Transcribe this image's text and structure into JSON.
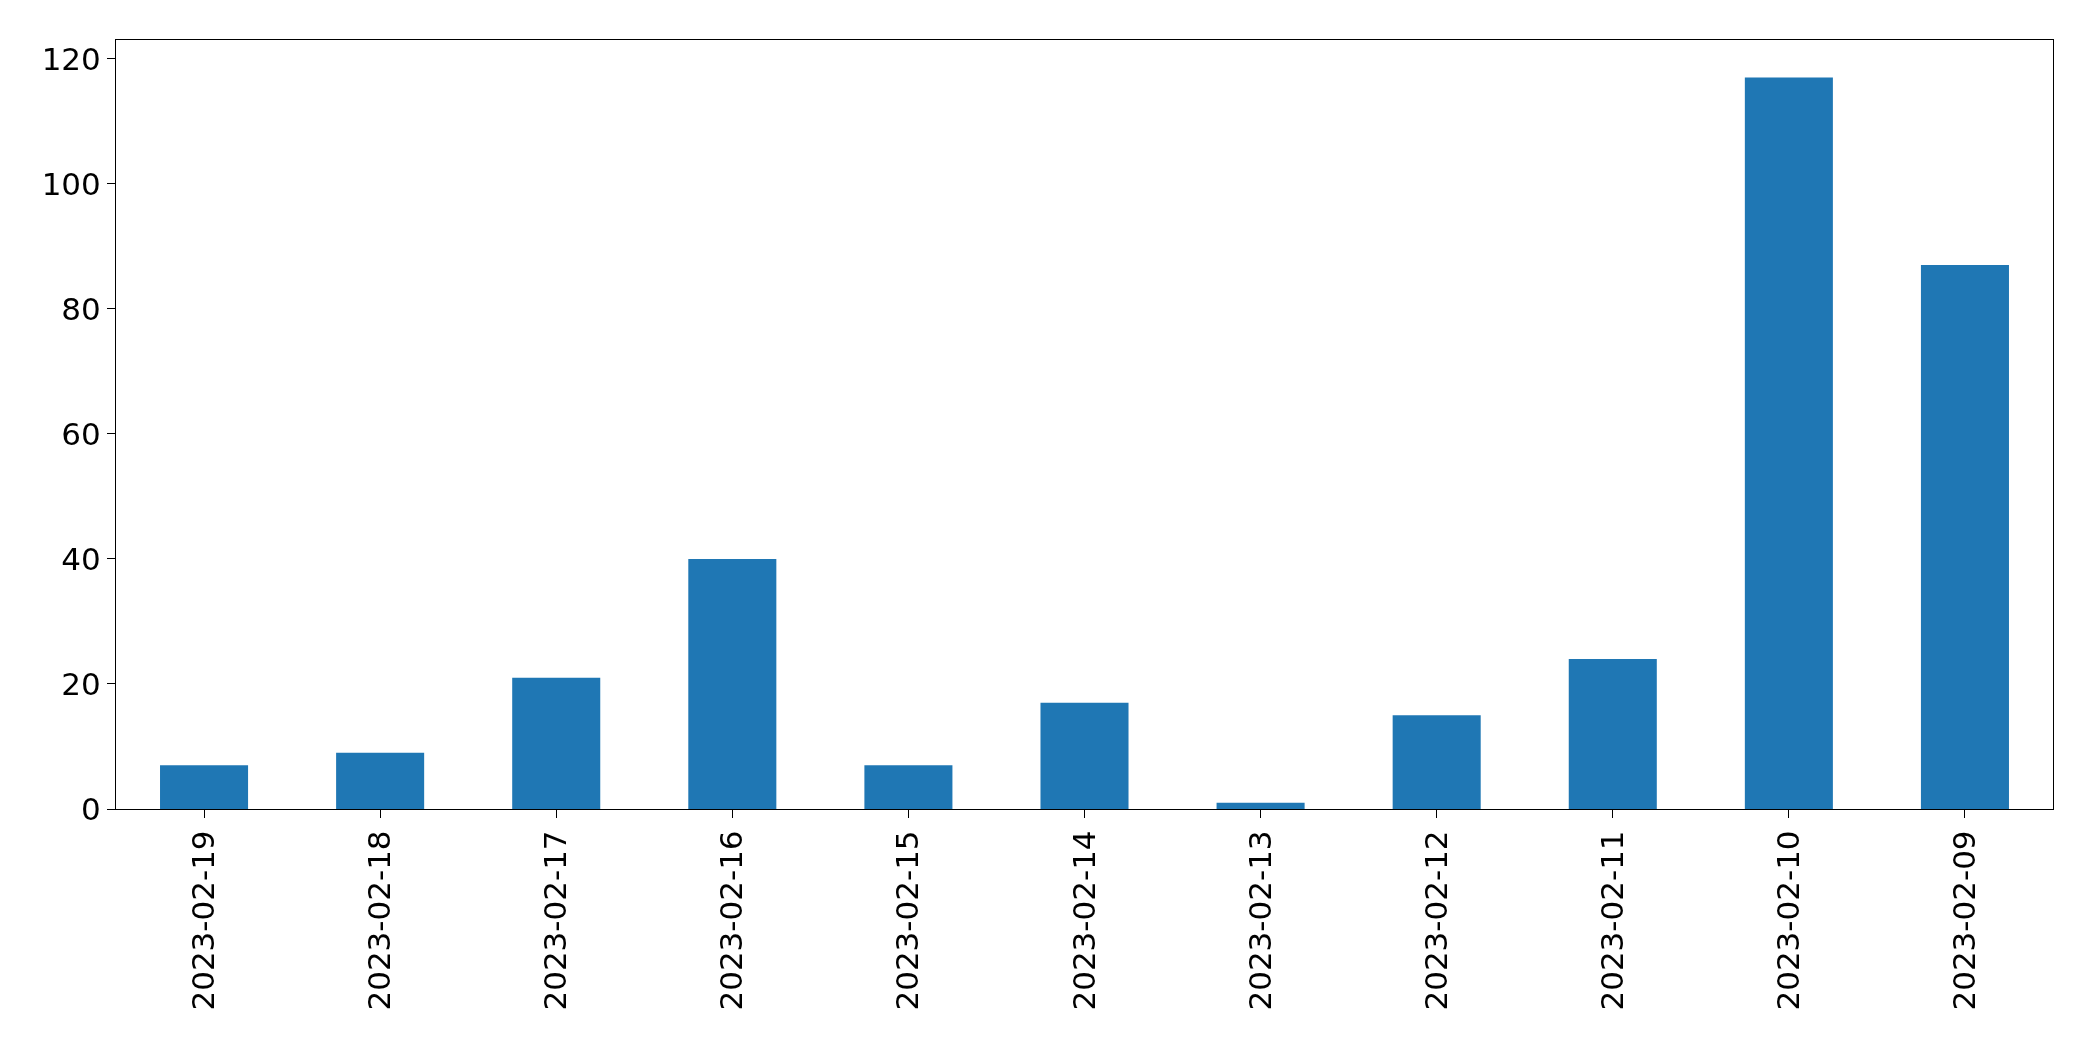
{
  "chart_data": {
    "type": "bar",
    "categories": [
      "2023-02-19",
      "2023-02-18",
      "2023-02-17",
      "2023-02-16",
      "2023-02-15",
      "2023-02-14",
      "2023-02-13",
      "2023-02-12",
      "2023-02-11",
      "2023-02-10",
      "2023-02-09"
    ],
    "values": [
      7,
      9,
      21,
      40,
      7,
      17,
      1,
      15,
      24,
      117,
      87
    ],
    "color": "#1f77b4",
    "ylim": [
      0,
      123
    ],
    "yticks": [
      0,
      20,
      40,
      60,
      80,
      100,
      120
    ],
    "legend": false
  }
}
